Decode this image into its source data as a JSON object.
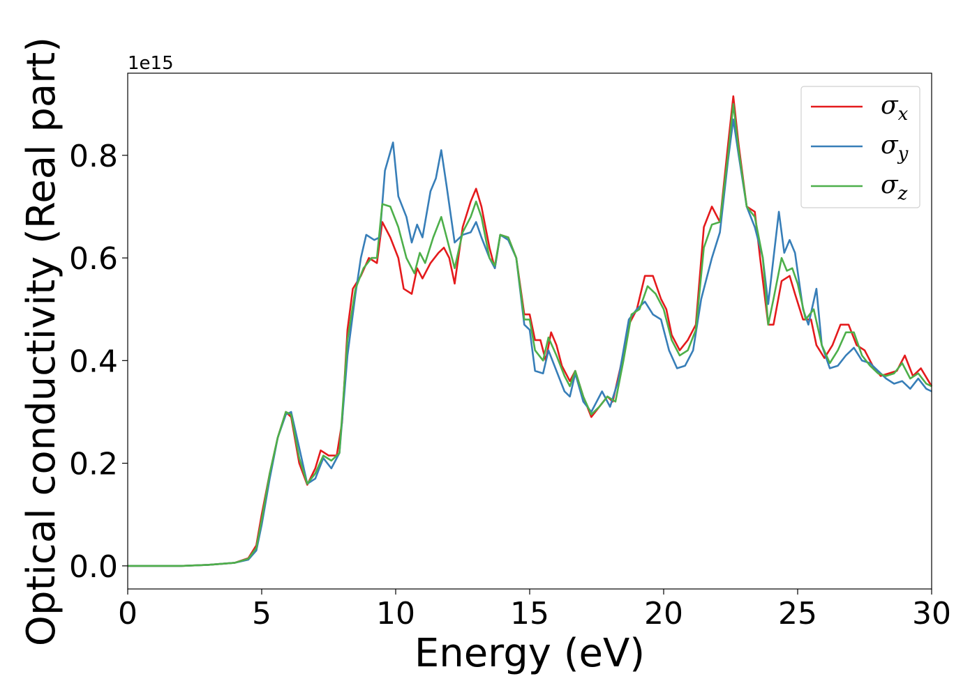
{
  "chart_data": {
    "type": "line",
    "xlabel": "Energy (eV)",
    "ylabel": "Optical conductivity (Real part)",
    "y_offset_text": "1e15",
    "xlim": [
      0,
      30
    ],
    "ylim": [
      -0.045,
      0.96
    ],
    "x_ticks": [
      0,
      5,
      10,
      15,
      20,
      25,
      30
    ],
    "y_ticks": [
      0.0,
      0.2,
      0.4,
      0.6,
      0.8
    ],
    "x_tick_labels": [
      "0",
      "5",
      "10",
      "15",
      "20",
      "25",
      "30"
    ],
    "y_tick_labels": [
      "0.0",
      "0.2",
      "0.4",
      "0.6",
      "0.8"
    ],
    "grid": false,
    "legend_position": "top-right",
    "series": [
      {
        "name": "σ_x",
        "label_base": "σ",
        "label_sub": "x",
        "color": "#e41a1c",
        "points": [
          [
            0,
            0
          ],
          [
            2,
            0
          ],
          [
            3,
            0.002
          ],
          [
            4,
            0.006
          ],
          [
            4.5,
            0.015
          ],
          [
            4.8,
            0.04
          ],
          [
            5,
            0.1
          ],
          [
            5.3,
            0.18
          ],
          [
            5.6,
            0.25
          ],
          [
            5.9,
            0.3
          ],
          [
            6.1,
            0.29
          ],
          [
            6.4,
            0.2
          ],
          [
            6.7,
            0.158
          ],
          [
            7,
            0.19
          ],
          [
            7.2,
            0.225
          ],
          [
            7.5,
            0.215
          ],
          [
            7.8,
            0.215
          ],
          [
            8,
            0.28
          ],
          [
            8.2,
            0.46
          ],
          [
            8.4,
            0.54
          ],
          [
            8.7,
            0.565
          ],
          [
            9,
            0.6
          ],
          [
            9.3,
            0.59
          ],
          [
            9.5,
            0.67
          ],
          [
            9.8,
            0.64
          ],
          [
            10.1,
            0.6
          ],
          [
            10.3,
            0.54
          ],
          [
            10.6,
            0.53
          ],
          [
            10.8,
            0.58
          ],
          [
            11,
            0.56
          ],
          [
            11.3,
            0.59
          ],
          [
            11.6,
            0.61
          ],
          [
            11.8,
            0.62
          ],
          [
            12,
            0.6
          ],
          [
            12.2,
            0.55
          ],
          [
            12.5,
            0.66
          ],
          [
            12.8,
            0.71
          ],
          [
            13,
            0.735
          ],
          [
            13.2,
            0.7
          ],
          [
            13.5,
            0.62
          ],
          [
            13.7,
            0.58
          ],
          [
            13.9,
            0.645
          ],
          [
            14.2,
            0.64
          ],
          [
            14.5,
            0.6
          ],
          [
            14.8,
            0.49
          ],
          [
            15,
            0.49
          ],
          [
            15.2,
            0.44
          ],
          [
            15.4,
            0.44
          ],
          [
            15.6,
            0.4
          ],
          [
            15.8,
            0.455
          ],
          [
            16,
            0.43
          ],
          [
            16.2,
            0.39
          ],
          [
            16.5,
            0.36
          ],
          [
            16.7,
            0.38
          ],
          [
            17,
            0.33
          ],
          [
            17.3,
            0.29
          ],
          [
            17.6,
            0.31
          ],
          [
            17.9,
            0.33
          ],
          [
            18.1,
            0.32
          ],
          [
            18.4,
            0.39
          ],
          [
            18.7,
            0.47
          ],
          [
            19,
            0.5
          ],
          [
            19.3,
            0.565
          ],
          [
            19.6,
            0.565
          ],
          [
            19.9,
            0.52
          ],
          [
            20.1,
            0.5
          ],
          [
            20.3,
            0.45
          ],
          [
            20.6,
            0.42
          ],
          [
            20.9,
            0.44
          ],
          [
            21.2,
            0.47
          ],
          [
            21.5,
            0.66
          ],
          [
            21.8,
            0.7
          ],
          [
            22.1,
            0.67
          ],
          [
            22.4,
            0.82
          ],
          [
            22.6,
            0.915
          ],
          [
            22.8,
            0.82
          ],
          [
            23.1,
            0.7
          ],
          [
            23.4,
            0.69
          ],
          [
            23.6,
            0.6
          ],
          [
            23.9,
            0.47
          ],
          [
            24.1,
            0.47
          ],
          [
            24.4,
            0.555
          ],
          [
            24.7,
            0.565
          ],
          [
            24.9,
            0.53
          ],
          [
            25.2,
            0.48
          ],
          [
            25.5,
            0.48
          ],
          [
            25.7,
            0.43
          ],
          [
            26,
            0.405
          ],
          [
            26.3,
            0.43
          ],
          [
            26.6,
            0.47
          ],
          [
            26.9,
            0.47
          ],
          [
            27.2,
            0.43
          ],
          [
            27.5,
            0.42
          ],
          [
            27.8,
            0.39
          ],
          [
            28.1,
            0.37
          ],
          [
            28.4,
            0.375
          ],
          [
            28.7,
            0.38
          ],
          [
            29,
            0.41
          ],
          [
            29.3,
            0.37
          ],
          [
            29.6,
            0.385
          ],
          [
            30,
            0.35
          ]
        ]
      },
      {
        "name": "σ_y",
        "label_base": "σ",
        "label_sub": "y",
        "color": "#377eb8",
        "points": [
          [
            0,
            0
          ],
          [
            2,
            0
          ],
          [
            3,
            0.002
          ],
          [
            4,
            0.006
          ],
          [
            4.5,
            0.012
          ],
          [
            4.8,
            0.03
          ],
          [
            5,
            0.08
          ],
          [
            5.3,
            0.17
          ],
          [
            5.6,
            0.25
          ],
          [
            5.9,
            0.295
          ],
          [
            6.1,
            0.3
          ],
          [
            6.4,
            0.23
          ],
          [
            6.7,
            0.16
          ],
          [
            7,
            0.17
          ],
          [
            7.3,
            0.21
          ],
          [
            7.6,
            0.19
          ],
          [
            7.9,
            0.22
          ],
          [
            8.2,
            0.41
          ],
          [
            8.5,
            0.53
          ],
          [
            8.7,
            0.6
          ],
          [
            8.9,
            0.645
          ],
          [
            9.2,
            0.635
          ],
          [
            9.4,
            0.64
          ],
          [
            9.6,
            0.77
          ],
          [
            9.9,
            0.825
          ],
          [
            10.1,
            0.72
          ],
          [
            10.4,
            0.68
          ],
          [
            10.6,
            0.63
          ],
          [
            10.8,
            0.665
          ],
          [
            11,
            0.64
          ],
          [
            11.3,
            0.73
          ],
          [
            11.5,
            0.755
          ],
          [
            11.7,
            0.81
          ],
          [
            11.9,
            0.74
          ],
          [
            12.2,
            0.63
          ],
          [
            12.5,
            0.645
          ],
          [
            12.8,
            0.65
          ],
          [
            13,
            0.67
          ],
          [
            13.2,
            0.64
          ],
          [
            13.5,
            0.6
          ],
          [
            13.7,
            0.58
          ],
          [
            13.9,
            0.645
          ],
          [
            14.2,
            0.635
          ],
          [
            14.5,
            0.6
          ],
          [
            14.8,
            0.47
          ],
          [
            15,
            0.46
          ],
          [
            15.2,
            0.38
          ],
          [
            15.5,
            0.375
          ],
          [
            15.7,
            0.42
          ],
          [
            16,
            0.38
          ],
          [
            16.3,
            0.34
          ],
          [
            16.5,
            0.33
          ],
          [
            16.7,
            0.375
          ],
          [
            17,
            0.32
          ],
          [
            17.3,
            0.3
          ],
          [
            17.7,
            0.34
          ],
          [
            18,
            0.31
          ],
          [
            18.3,
            0.36
          ],
          [
            18.7,
            0.48
          ],
          [
            19,
            0.5
          ],
          [
            19.3,
            0.515
          ],
          [
            19.6,
            0.49
          ],
          [
            19.9,
            0.48
          ],
          [
            20.2,
            0.42
          ],
          [
            20.5,
            0.385
          ],
          [
            20.8,
            0.39
          ],
          [
            21.1,
            0.42
          ],
          [
            21.4,
            0.52
          ],
          [
            21.8,
            0.6
          ],
          [
            22.1,
            0.65
          ],
          [
            22.4,
            0.79
          ],
          [
            22.6,
            0.87
          ],
          [
            22.8,
            0.8
          ],
          [
            23.1,
            0.7
          ],
          [
            23.4,
            0.66
          ],
          [
            23.7,
            0.6
          ],
          [
            23.9,
            0.51
          ],
          [
            24.1,
            0.6
          ],
          [
            24.3,
            0.69
          ],
          [
            24.5,
            0.61
          ],
          [
            24.7,
            0.635
          ],
          [
            24.9,
            0.61
          ],
          [
            25.2,
            0.5
          ],
          [
            25.4,
            0.47
          ],
          [
            25.7,
            0.54
          ],
          [
            25.9,
            0.43
          ],
          [
            26.2,
            0.385
          ],
          [
            26.5,
            0.39
          ],
          [
            26.8,
            0.41
          ],
          [
            27.1,
            0.425
          ],
          [
            27.4,
            0.4
          ],
          [
            27.7,
            0.395
          ],
          [
            28,
            0.38
          ],
          [
            28.3,
            0.365
          ],
          [
            28.6,
            0.355
          ],
          [
            28.9,
            0.36
          ],
          [
            29.2,
            0.345
          ],
          [
            29.5,
            0.365
          ],
          [
            29.8,
            0.345
          ],
          [
            30,
            0.34
          ]
        ]
      },
      {
        "name": "σ_z",
        "label_base": "σ",
        "label_sub": "z",
        "color": "#4daf4a",
        "points": [
          [
            0,
            0
          ],
          [
            2,
            0
          ],
          [
            3,
            0.002
          ],
          [
            4,
            0.006
          ],
          [
            4.5,
            0.014
          ],
          [
            4.8,
            0.035
          ],
          [
            5,
            0.09
          ],
          [
            5.3,
            0.18
          ],
          [
            5.6,
            0.25
          ],
          [
            5.9,
            0.3
          ],
          [
            6.1,
            0.295
          ],
          [
            6.4,
            0.21
          ],
          [
            6.7,
            0.16
          ],
          [
            7,
            0.18
          ],
          [
            7.3,
            0.215
          ],
          [
            7.6,
            0.205
          ],
          [
            7.9,
            0.22
          ],
          [
            8.2,
            0.44
          ],
          [
            8.5,
            0.54
          ],
          [
            8.8,
            0.58
          ],
          [
            9.1,
            0.6
          ],
          [
            9.3,
            0.6
          ],
          [
            9.5,
            0.705
          ],
          [
            9.8,
            0.7
          ],
          [
            10.1,
            0.66
          ],
          [
            10.4,
            0.6
          ],
          [
            10.7,
            0.57
          ],
          [
            10.9,
            0.61
          ],
          [
            11.1,
            0.59
          ],
          [
            11.4,
            0.64
          ],
          [
            11.7,
            0.68
          ],
          [
            11.9,
            0.64
          ],
          [
            12.2,
            0.58
          ],
          [
            12.5,
            0.65
          ],
          [
            12.8,
            0.68
          ],
          [
            13,
            0.71
          ],
          [
            13.2,
            0.68
          ],
          [
            13.5,
            0.6
          ],
          [
            13.7,
            0.585
          ],
          [
            13.9,
            0.645
          ],
          [
            14.2,
            0.64
          ],
          [
            14.5,
            0.6
          ],
          [
            14.8,
            0.48
          ],
          [
            15,
            0.48
          ],
          [
            15.2,
            0.42
          ],
          [
            15.5,
            0.4
          ],
          [
            15.7,
            0.445
          ],
          [
            16,
            0.41
          ],
          [
            16.3,
            0.37
          ],
          [
            16.5,
            0.35
          ],
          [
            16.7,
            0.38
          ],
          [
            17,
            0.33
          ],
          [
            17.3,
            0.295
          ],
          [
            17.6,
            0.31
          ],
          [
            17.9,
            0.33
          ],
          [
            18.2,
            0.32
          ],
          [
            18.5,
            0.4
          ],
          [
            18.8,
            0.49
          ],
          [
            19.1,
            0.5
          ],
          [
            19.4,
            0.545
          ],
          [
            19.7,
            0.53
          ],
          [
            20,
            0.5
          ],
          [
            20.3,
            0.44
          ],
          [
            20.6,
            0.41
          ],
          [
            20.9,
            0.42
          ],
          [
            21.2,
            0.46
          ],
          [
            21.5,
            0.62
          ],
          [
            21.8,
            0.665
          ],
          [
            22.1,
            0.67
          ],
          [
            22.4,
            0.8
          ],
          [
            22.6,
            0.9
          ],
          [
            22.8,
            0.81
          ],
          [
            23.1,
            0.7
          ],
          [
            23.4,
            0.68
          ],
          [
            23.7,
            0.6
          ],
          [
            23.9,
            0.47
          ],
          [
            24.1,
            0.52
          ],
          [
            24.4,
            0.6
          ],
          [
            24.6,
            0.575
          ],
          [
            24.8,
            0.58
          ],
          [
            25,
            0.55
          ],
          [
            25.3,
            0.48
          ],
          [
            25.6,
            0.5
          ],
          [
            25.9,
            0.43
          ],
          [
            26.2,
            0.395
          ],
          [
            26.5,
            0.42
          ],
          [
            26.8,
            0.455
          ],
          [
            27.1,
            0.455
          ],
          [
            27.4,
            0.41
          ],
          [
            27.7,
            0.39
          ],
          [
            28,
            0.375
          ],
          [
            28.3,
            0.37
          ],
          [
            28.6,
            0.375
          ],
          [
            28.9,
            0.395
          ],
          [
            29.2,
            0.365
          ],
          [
            29.5,
            0.375
          ],
          [
            29.8,
            0.355
          ],
          [
            30,
            0.35
          ]
        ]
      }
    ]
  }
}
